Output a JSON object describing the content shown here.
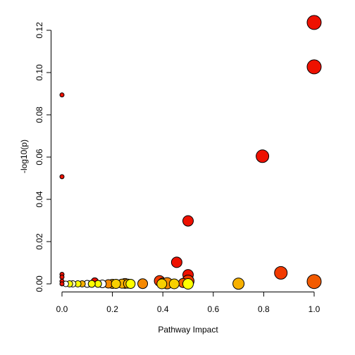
{
  "chart_data": {
    "type": "scatter",
    "title": "",
    "xlabel": "Pathway Impact",
    "ylabel": "-log10(p)",
    "xlim": [
      0,
      1
    ],
    "ylim": [
      0,
      0.12
    ],
    "x_ticks": [
      "0.0",
      "0.2",
      "0.4",
      "0.6",
      "0.8",
      "1.0"
    ],
    "y_ticks": [
      "0.00",
      "0.02",
      "0.04",
      "0.06",
      "0.08",
      "0.10",
      "0.12"
    ],
    "grid": false,
    "legend": "none",
    "colors": {
      "red": "#ee1100",
      "red_orange": "#f23a00",
      "orange_red": "#f25a00",
      "orange": "#f58800",
      "orange_yellow": "#f7b000",
      "yellow_orange": "#f8d000",
      "yellow": "#ffff00",
      "pale_yellow": "#ffffbb",
      "white": "#ffffff"
    },
    "points": [
      {
        "x": 1.0,
        "y": 0.1237,
        "size": 10,
        "color": "red"
      },
      {
        "x": 1.0,
        "y": 0.1027,
        "size": 10,
        "color": "red"
      },
      {
        "x": 0.0,
        "y": 0.0894,
        "size": 3,
        "color": "red"
      },
      {
        "x": 0.795,
        "y": 0.0604,
        "size": 9,
        "color": "red"
      },
      {
        "x": 0.0,
        "y": 0.0507,
        "size": 3,
        "color": "red"
      },
      {
        "x": 0.5,
        "y": 0.0298,
        "size": 7.5,
        "color": "red"
      },
      {
        "x": 0.455,
        "y": 0.0102,
        "size": 7.5,
        "color": "red"
      },
      {
        "x": 0.5,
        "y": 0.0043,
        "size": 7.5,
        "color": "red"
      },
      {
        "x": 0.868,
        "y": 0.0052,
        "size": 9,
        "color": "red_orange"
      },
      {
        "x": 0.0,
        "y": 0.0045,
        "size": 3,
        "color": "red"
      },
      {
        "x": 0.0,
        "y": 0.0032,
        "size": 3,
        "color": "red"
      },
      {
        "x": 0.0,
        "y": 0.0012,
        "size": 3,
        "color": "red"
      },
      {
        "x": 0.387,
        "y": 0.0014,
        "size": 7.5,
        "color": "red_orange"
      },
      {
        "x": 0.5,
        "y": 0.0013,
        "size": 8.5,
        "color": "red_orange"
      },
      {
        "x": 0.13,
        "y": 0.0012,
        "size": 5,
        "color": "red"
      },
      {
        "x": 1.0,
        "y": 0.0011,
        "size": 10,
        "color": "orange_red"
      },
      {
        "x": 0.4,
        "y": 0.0004,
        "size": 7,
        "color": "orange"
      },
      {
        "x": 0.417,
        "y": 0.0003,
        "size": 8,
        "color": "orange"
      },
      {
        "x": 0.48,
        "y": 0.0004,
        "size": 6.5,
        "color": "orange_red"
      },
      {
        "x": 0.32,
        "y": 0.0001,
        "size": 7,
        "color": "orange"
      },
      {
        "x": 0.25,
        "y": 0.0002,
        "size": 7,
        "color": "orange"
      },
      {
        "x": 0.238,
        "y": 0.0001,
        "size": 6.5,
        "color": "orange_yellow"
      },
      {
        "x": 0.262,
        "y": 0.0001,
        "size": 6.5,
        "color": "orange_yellow"
      },
      {
        "x": 0.7,
        "y": 0.0001,
        "size": 8,
        "color": "orange_yellow"
      },
      {
        "x": 0.2,
        "y": 0.0,
        "size": 6.5,
        "color": "orange_yellow"
      },
      {
        "x": 0.184,
        "y": 0.0,
        "size": 6,
        "color": "orange"
      },
      {
        "x": 0.272,
        "y": 0.0,
        "size": 6.5,
        "color": "yellow"
      },
      {
        "x": 0.214,
        "y": 0.0,
        "size": 6.5,
        "color": "yellow_orange"
      },
      {
        "x": 0.396,
        "y": 0.0,
        "size": 7,
        "color": "yellow_orange"
      },
      {
        "x": 0.445,
        "y": 0.0,
        "size": 7,
        "color": "yellow_orange"
      },
      {
        "x": 0.5,
        "y": 0.0,
        "size": 7.5,
        "color": "yellow"
      },
      {
        "x": 0.16,
        "y": 0.0,
        "size": 5.5,
        "color": "white"
      },
      {
        "x": 0.143,
        "y": 0.0,
        "size": 5,
        "color": "yellow"
      },
      {
        "x": 0.1,
        "y": 0.0,
        "size": 5,
        "color": "white"
      },
      {
        "x": 0.118,
        "y": 0.0,
        "size": 5,
        "color": "yellow"
      },
      {
        "x": 0.08,
        "y": 0.0,
        "size": 4.5,
        "color": "orange_yellow"
      },
      {
        "x": 0.063,
        "y": 0.0,
        "size": 4.5,
        "color": "yellow"
      },
      {
        "x": 0.043,
        "y": 0.0,
        "size": 4.5,
        "color": "pale_yellow"
      },
      {
        "x": 0.03,
        "y": 0.0,
        "size": 4.5,
        "color": "yellow"
      },
      {
        "x": 0.015,
        "y": 0.0,
        "size": 4,
        "color": "white"
      },
      {
        "x": 0.0,
        "y": 0.0,
        "size": 3,
        "color": "red"
      }
    ]
  }
}
